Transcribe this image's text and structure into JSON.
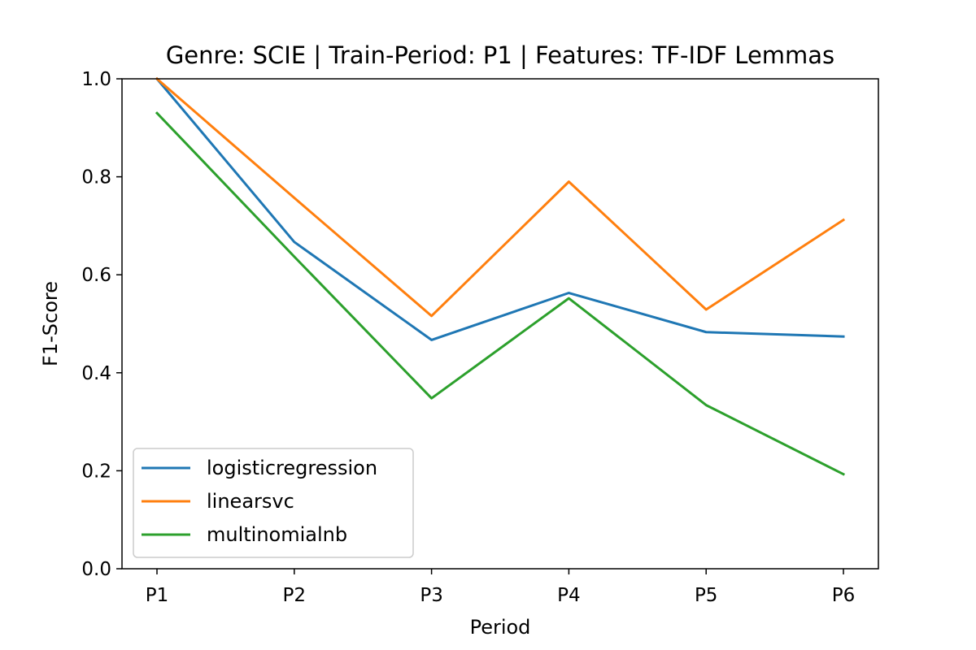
{
  "chart_data": {
    "type": "line",
    "title": "Genre: SCIE | Train-Period: P1 | Features: TF-IDF Lemmas",
    "xlabel": "Period",
    "ylabel": "F1-Score",
    "categories": [
      "P1",
      "P2",
      "P3",
      "P4",
      "P5",
      "P6"
    ],
    "ylim": [
      0.0,
      1.0
    ],
    "yticks": [
      0.0,
      0.2,
      0.4,
      0.6,
      0.8,
      1.0
    ],
    "ytick_labels": [
      "0.0",
      "0.2",
      "0.4",
      "0.6",
      "0.8",
      "1.0"
    ],
    "grid": false,
    "legend_position": "lower-left",
    "series": [
      {
        "name": "logisticregression",
        "color": "#1f77b4",
        "values": [
          1.0,
          0.667,
          0.467,
          0.563,
          0.483,
          0.474
        ]
      },
      {
        "name": "linearsvc",
        "color": "#ff7f0e",
        "values": [
          1.0,
          0.757,
          0.516,
          0.79,
          0.529,
          0.712
        ]
      },
      {
        "name": "multinomialnb",
        "color": "#2ca02c",
        "values": [
          0.93,
          0.637,
          0.348,
          0.552,
          0.334,
          0.193
        ]
      }
    ]
  }
}
